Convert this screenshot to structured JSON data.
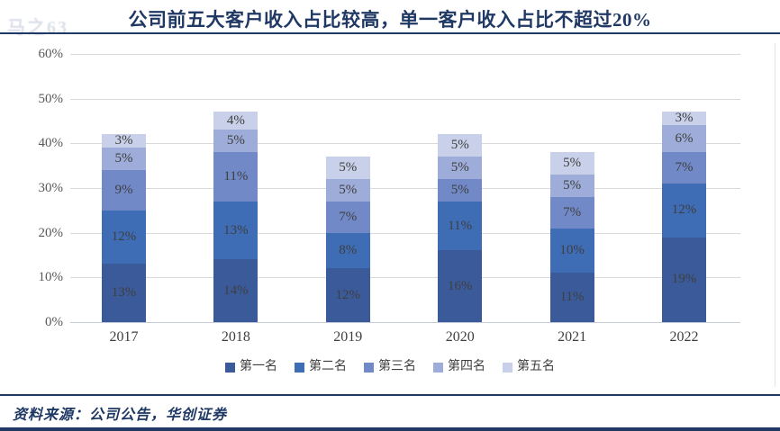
{
  "watermark": "马之63",
  "header": {
    "title": "公司前五大客户收入占比较高，单一客户收入占比不超过20%"
  },
  "chart_data": {
    "type": "bar",
    "stacked": true,
    "title": "公司前五大客户收入占比较高，单一客户收入占比不超过20%",
    "categories": [
      "2017",
      "2018",
      "2019",
      "2020",
      "2021",
      "2022"
    ],
    "series": [
      {
        "name": "第一名",
        "color": "#3B5A9A",
        "values": [
          13,
          14,
          12,
          16,
          11,
          19
        ]
      },
      {
        "name": "第二名",
        "color": "#3E6CB5",
        "values": [
          12,
          13,
          8,
          11,
          10,
          12
        ]
      },
      {
        "name": "第三名",
        "color": "#7189C7",
        "values": [
          9,
          11,
          7,
          5,
          7,
          7
        ]
      },
      {
        "name": "第四名",
        "color": "#9DACD8",
        "values": [
          5,
          5,
          5,
          5,
          5,
          6
        ]
      },
      {
        "name": "第五名",
        "color": "#C8D1E9",
        "values": [
          3,
          4,
          5,
          5,
          5,
          3
        ]
      }
    ],
    "value_suffix": "%",
    "xlabel": "",
    "ylabel": "",
    "ylim": [
      0,
      60
    ],
    "yticks": [
      "0%",
      "10%",
      "20%",
      "30%",
      "40%",
      "50%",
      "60%"
    ],
    "grid": true,
    "legend_position": "bottom",
    "data_label_color": "#3F3F3F",
    "tick_label_color": "#595959"
  },
  "footer": {
    "source": "资料来源：公司公告，华创证券"
  }
}
